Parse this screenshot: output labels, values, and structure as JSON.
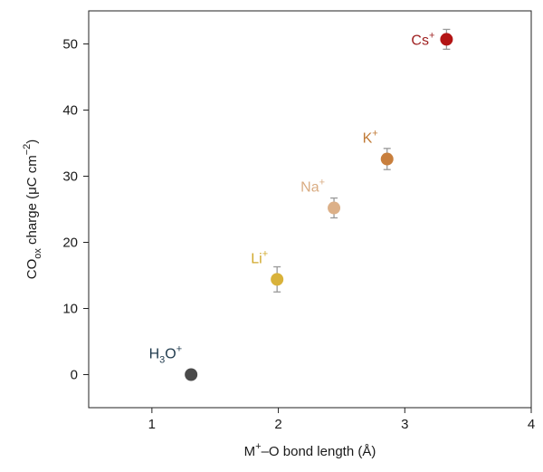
{
  "chart_data": {
    "type": "scatter",
    "title": "",
    "xlabel": {
      "pre": "M",
      "sup": "+",
      "post": "–O bond length (Å)"
    },
    "ylabel": {
      "pre": "CO",
      "sub": "ox",
      "mid": " charge (μC cm",
      "sup": "−2",
      "post": ")"
    },
    "xlim": [
      0.5,
      4.0
    ],
    "ylim": [
      -5,
      55
    ],
    "xticks": [
      1,
      2,
      3,
      4
    ],
    "yticks": [
      0,
      10,
      20,
      30,
      40,
      50
    ],
    "grid": false,
    "error_bar_color": "#999999",
    "points": [
      {
        "base": "H",
        "sub": "3",
        "base2": "O",
        "sup": "+",
        "x": 1.31,
        "y": 0.0,
        "err": 0.5,
        "color": "#4a4a4a",
        "label_color": "#1f3a4d",
        "label_pos": "upper-left"
      },
      {
        "base": "Li",
        "sub": "",
        "base2": "",
        "sup": "+",
        "x": 1.99,
        "y": 14.4,
        "err": 1.9,
        "color": "#d9b23a",
        "label_color": "#d1a92c",
        "label_pos": "upper-left"
      },
      {
        "base": "Na",
        "sub": "",
        "base2": "",
        "sup": "+",
        "x": 2.44,
        "y": 25.2,
        "err": 1.5,
        "color": "#dcb088",
        "label_color": "#d9ac82",
        "label_pos": "upper-left"
      },
      {
        "base": "K",
        "sub": "",
        "base2": "",
        "sup": "+",
        "x": 2.86,
        "y": 32.6,
        "err": 1.6,
        "color": "#c87f3d",
        "label_color": "#c07a36",
        "label_pos": "upper-left"
      },
      {
        "base": "Cs",
        "sub": "",
        "base2": "",
        "sup": "+",
        "x": 3.33,
        "y": 50.7,
        "err": 1.5,
        "color": "#b31414",
        "label_color": "#9e1e1e",
        "label_pos": "left"
      }
    ]
  }
}
